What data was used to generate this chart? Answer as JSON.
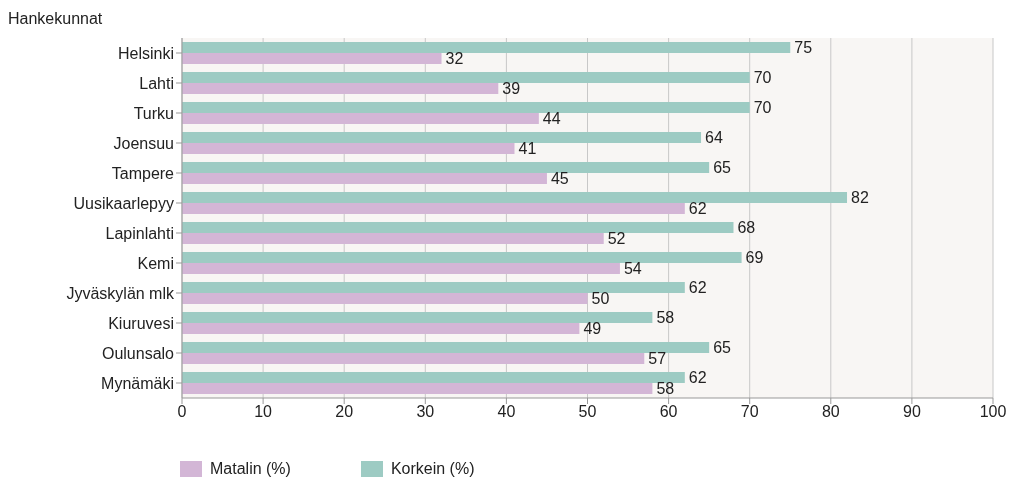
{
  "chart_data": {
    "type": "bar",
    "orientation": "horizontal",
    "ylabel": "Hankekunnat",
    "categories": [
      "Helsinki",
      "Lahti",
      "Turku",
      "Joensuu",
      "Tampere",
      "Uusikaarlepyy",
      "Lapinlahti",
      "Kemi",
      "Jyväskylän mlk",
      "Kiuruvesi",
      "Oulunsalo",
      "Mynämäki"
    ],
    "series": [
      {
        "name": "Matalin (%)",
        "color": "#d3b6d6",
        "values": [
          32,
          39,
          44,
          41,
          45,
          62,
          52,
          54,
          50,
          49,
          57,
          58
        ]
      },
      {
        "name": "Korkein (%)",
        "color": "#9dcbc3",
        "values": [
          75,
          70,
          70,
          64,
          65,
          82,
          68,
          69,
          62,
          58,
          65,
          62
        ]
      }
    ],
    "xlim": [
      0,
      100
    ],
    "xticks": [
      0,
      10,
      20,
      30,
      40,
      50,
      60,
      70,
      80,
      90,
      100
    ],
    "grid": "x",
    "legend": "bottom left",
    "data_labels": true
  }
}
